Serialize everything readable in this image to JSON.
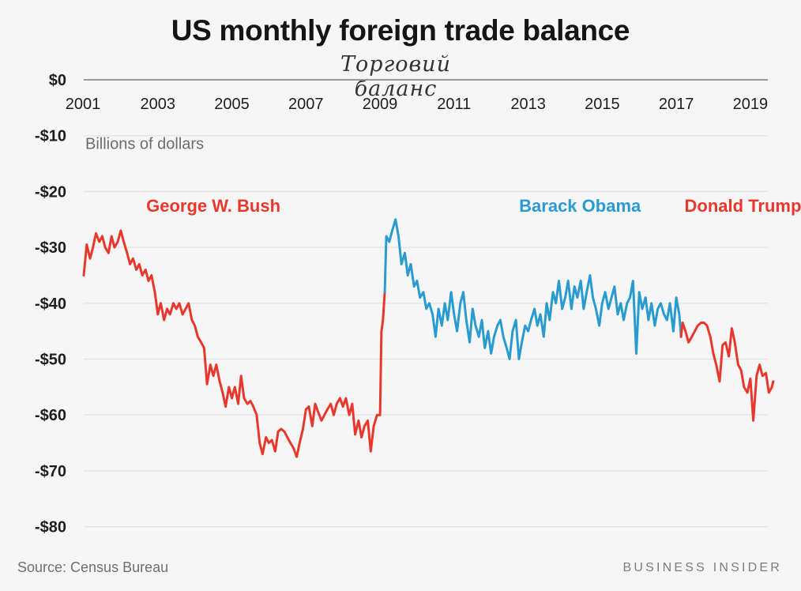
{
  "chart_data": {
    "type": "line",
    "title": "US monthly foreign trade balance",
    "subtitle": "Торговий баланс",
    "units_label": "Billions of dollars",
    "x_range": [
      2001,
      2019.6
    ],
    "ylim": [
      -83,
      0
    ],
    "x_tick_labels": [
      "2001",
      "2003",
      "2005",
      "2007",
      "2009",
      "2011",
      "2013",
      "2015",
      "2017",
      "2019"
    ],
    "y_tick_labels": [
      "$0",
      "-$10",
      "-$20",
      "-$30",
      "-$40",
      "-$50",
      "-$60",
      "-$70",
      "-$80"
    ],
    "grid": true,
    "colors": {
      "bush": "#e8382d",
      "obama": "#2a9bd1",
      "trump": "#e8382d",
      "axis": "#999999",
      "grid": "#e2e2e2"
    },
    "series": [
      {
        "name": "George W. Bush",
        "color": "#e8382d",
        "points": [
          [
            2001.0,
            -35
          ],
          [
            2001.08,
            -29.5
          ],
          [
            2001.17,
            -32
          ],
          [
            2001.25,
            -30
          ],
          [
            2001.33,
            -27.5
          ],
          [
            2001.42,
            -29
          ],
          [
            2001.5,
            -28
          ],
          [
            2001.58,
            -30
          ],
          [
            2001.67,
            -31
          ],
          [
            2001.75,
            -28
          ],
          [
            2001.83,
            -30
          ],
          [
            2001.92,
            -29
          ],
          [
            2002.0,
            -27
          ],
          [
            2002.08,
            -29
          ],
          [
            2002.17,
            -31
          ],
          [
            2002.25,
            -33
          ],
          [
            2002.33,
            -32
          ],
          [
            2002.42,
            -34
          ],
          [
            2002.5,
            -33
          ],
          [
            2002.58,
            -35
          ],
          [
            2002.67,
            -34
          ],
          [
            2002.75,
            -36
          ],
          [
            2002.83,
            -35
          ],
          [
            2002.92,
            -38
          ],
          [
            2003.0,
            -42
          ],
          [
            2003.08,
            -40
          ],
          [
            2003.17,
            -43
          ],
          [
            2003.25,
            -41
          ],
          [
            2003.33,
            -42
          ],
          [
            2003.42,
            -40
          ],
          [
            2003.5,
            -41
          ],
          [
            2003.58,
            -40
          ],
          [
            2003.67,
            -42
          ],
          [
            2003.75,
            -41
          ],
          [
            2003.83,
            -40
          ],
          [
            2003.92,
            -43
          ],
          [
            2004.0,
            -44
          ],
          [
            2004.08,
            -46
          ],
          [
            2004.17,
            -47
          ],
          [
            2004.25,
            -48
          ],
          [
            2004.33,
            -54.5
          ],
          [
            2004.42,
            -51
          ],
          [
            2004.5,
            -53
          ],
          [
            2004.58,
            -51
          ],
          [
            2004.67,
            -54
          ],
          [
            2004.75,
            -56
          ],
          [
            2004.83,
            -58.5
          ],
          [
            2004.92,
            -55
          ],
          [
            2005.0,
            -57
          ],
          [
            2005.08,
            -55
          ],
          [
            2005.17,
            -58
          ],
          [
            2005.25,
            -53
          ],
          [
            2005.33,
            -57
          ],
          [
            2005.42,
            -58
          ],
          [
            2005.5,
            -57.5
          ],
          [
            2005.58,
            -58.5
          ],
          [
            2005.67,
            -60
          ],
          [
            2005.75,
            -65
          ],
          [
            2005.83,
            -67
          ],
          [
            2005.92,
            -64
          ],
          [
            2006.0,
            -65
          ],
          [
            2006.08,
            -64.5
          ],
          [
            2006.17,
            -66.5
          ],
          [
            2006.25,
            -63
          ],
          [
            2006.33,
            -62.5
          ],
          [
            2006.42,
            -63
          ],
          [
            2006.5,
            -64
          ],
          [
            2006.58,
            -65
          ],
          [
            2006.67,
            -66
          ],
          [
            2006.75,
            -67.5
          ],
          [
            2006.83,
            -65
          ],
          [
            2006.92,
            -62.5
          ],
          [
            2007.0,
            -59
          ],
          [
            2007.08,
            -58.5
          ],
          [
            2007.17,
            -62
          ],
          [
            2007.25,
            -58
          ],
          [
            2007.33,
            -59.5
          ],
          [
            2007.42,
            -61
          ],
          [
            2007.5,
            -60
          ],
          [
            2007.58,
            -59
          ],
          [
            2007.67,
            -58
          ],
          [
            2007.75,
            -60
          ],
          [
            2007.83,
            -58
          ],
          [
            2007.92,
            -57
          ],
          [
            2008.0,
            -58.5
          ],
          [
            2008.08,
            -57
          ],
          [
            2008.17,
            -60
          ],
          [
            2008.25,
            -58
          ],
          [
            2008.33,
            -63.5
          ],
          [
            2008.42,
            -61
          ],
          [
            2008.5,
            -64
          ],
          [
            2008.58,
            -62
          ],
          [
            2008.67,
            -61
          ],
          [
            2008.75,
            -66.5
          ],
          [
            2008.83,
            -62
          ],
          [
            2008.92,
            -60
          ],
          [
            2009.0,
            -60
          ],
          [
            2009.04,
            -45
          ],
          [
            2009.08,
            -43
          ],
          [
            2009.13,
            -38
          ]
        ]
      },
      {
        "name": "Barack Obama",
        "color": "#2a9bd1",
        "points": [
          [
            2009.13,
            -38
          ],
          [
            2009.17,
            -28
          ],
          [
            2009.25,
            -29
          ],
          [
            2009.33,
            -27
          ],
          [
            2009.42,
            -25
          ],
          [
            2009.5,
            -28
          ],
          [
            2009.58,
            -33
          ],
          [
            2009.67,
            -31
          ],
          [
            2009.75,
            -35
          ],
          [
            2009.83,
            -33
          ],
          [
            2009.92,
            -37
          ],
          [
            2010.0,
            -36
          ],
          [
            2010.08,
            -39
          ],
          [
            2010.17,
            -38
          ],
          [
            2010.25,
            -41
          ],
          [
            2010.33,
            -40
          ],
          [
            2010.42,
            -42
          ],
          [
            2010.5,
            -46
          ],
          [
            2010.58,
            -41
          ],
          [
            2010.67,
            -44
          ],
          [
            2010.75,
            -40
          ],
          [
            2010.83,
            -43
          ],
          [
            2010.92,
            -38
          ],
          [
            2011.0,
            -42
          ],
          [
            2011.08,
            -45
          ],
          [
            2011.17,
            -40
          ],
          [
            2011.25,
            -38
          ],
          [
            2011.33,
            -43
          ],
          [
            2011.42,
            -47
          ],
          [
            2011.5,
            -41
          ],
          [
            2011.58,
            -44
          ],
          [
            2011.67,
            -46
          ],
          [
            2011.75,
            -43
          ],
          [
            2011.83,
            -48
          ],
          [
            2011.92,
            -45
          ],
          [
            2012.0,
            -49
          ],
          [
            2012.08,
            -46
          ],
          [
            2012.17,
            -44
          ],
          [
            2012.25,
            -43
          ],
          [
            2012.33,
            -46
          ],
          [
            2012.42,
            -48
          ],
          [
            2012.5,
            -50
          ],
          [
            2012.58,
            -45
          ],
          [
            2012.67,
            -43
          ],
          [
            2012.75,
            -50
          ],
          [
            2012.83,
            -47
          ],
          [
            2012.92,
            -44
          ],
          [
            2013.0,
            -45
          ],
          [
            2013.08,
            -43
          ],
          [
            2013.17,
            -41
          ],
          [
            2013.25,
            -44
          ],
          [
            2013.33,
            -42
          ],
          [
            2013.42,
            -46
          ],
          [
            2013.5,
            -40
          ],
          [
            2013.58,
            -43
          ],
          [
            2013.67,
            -38
          ],
          [
            2013.75,
            -40
          ],
          [
            2013.83,
            -36
          ],
          [
            2013.92,
            -41
          ],
          [
            2014.0,
            -39
          ],
          [
            2014.08,
            -36
          ],
          [
            2014.17,
            -41
          ],
          [
            2014.25,
            -37
          ],
          [
            2014.33,
            -39
          ],
          [
            2014.42,
            -36
          ],
          [
            2014.5,
            -41
          ],
          [
            2014.58,
            -38
          ],
          [
            2014.67,
            -35
          ],
          [
            2014.75,
            -39
          ],
          [
            2014.83,
            -41
          ],
          [
            2014.92,
            -44
          ],
          [
            2015.0,
            -40
          ],
          [
            2015.08,
            -38
          ],
          [
            2015.17,
            -41
          ],
          [
            2015.25,
            -39
          ],
          [
            2015.33,
            -37
          ],
          [
            2015.42,
            -42
          ],
          [
            2015.5,
            -40
          ],
          [
            2015.58,
            -43
          ],
          [
            2015.67,
            -40
          ],
          [
            2015.75,
            -39
          ],
          [
            2015.83,
            -36
          ],
          [
            2015.92,
            -49
          ],
          [
            2016.0,
            -38
          ],
          [
            2016.08,
            -41
          ],
          [
            2016.17,
            -39
          ],
          [
            2016.25,
            -43
          ],
          [
            2016.33,
            -40
          ],
          [
            2016.42,
            -44
          ],
          [
            2016.5,
            -41
          ],
          [
            2016.58,
            -40
          ],
          [
            2016.67,
            -42
          ],
          [
            2016.75,
            -43
          ],
          [
            2016.83,
            -40
          ],
          [
            2016.92,
            -45
          ],
          [
            2017.0,
            -39
          ],
          [
            2017.08,
            -42
          ],
          [
            2017.13,
            -46
          ]
        ]
      },
      {
        "name": "Donald Trump",
        "color": "#e8382d",
        "points": [
          [
            2017.13,
            -46
          ],
          [
            2017.17,
            -43.5
          ],
          [
            2017.25,
            -45
          ],
          [
            2017.33,
            -47
          ],
          [
            2017.42,
            -46
          ],
          [
            2017.5,
            -45
          ],
          [
            2017.58,
            -44
          ],
          [
            2017.67,
            -43.5
          ],
          [
            2017.75,
            -43.5
          ],
          [
            2017.83,
            -44
          ],
          [
            2017.92,
            -46
          ],
          [
            2018.0,
            -49
          ],
          [
            2018.08,
            -51
          ],
          [
            2018.17,
            -54
          ],
          [
            2018.25,
            -47.5
          ],
          [
            2018.33,
            -47
          ],
          [
            2018.42,
            -49.5
          ],
          [
            2018.5,
            -44.5
          ],
          [
            2018.58,
            -47
          ],
          [
            2018.67,
            -51
          ],
          [
            2018.75,
            -52
          ],
          [
            2018.83,
            -55
          ],
          [
            2018.92,
            -56
          ],
          [
            2019.0,
            -53.5
          ],
          [
            2019.08,
            -61
          ],
          [
            2019.17,
            -53
          ],
          [
            2019.25,
            -51
          ],
          [
            2019.33,
            -53
          ],
          [
            2019.42,
            -52.5
          ],
          [
            2019.5,
            -56
          ],
          [
            2019.58,
            -55
          ],
          [
            2019.62,
            -54
          ]
        ]
      }
    ],
    "annotations": [
      {
        "name": "bush-label",
        "text": "George W. Bush",
        "x": 2004.5,
        "y": -22.5
      },
      {
        "name": "obama-label",
        "text": "Barack Obama",
        "x": 2014.4,
        "y": -22.5
      },
      {
        "name": "trump-label",
        "text": "Donald Trump",
        "x": 2018.8,
        "y": -22.5
      }
    ]
  },
  "footer": {
    "source": "Source: Census Bureau",
    "brand": "BUSINESS INSIDER"
  }
}
